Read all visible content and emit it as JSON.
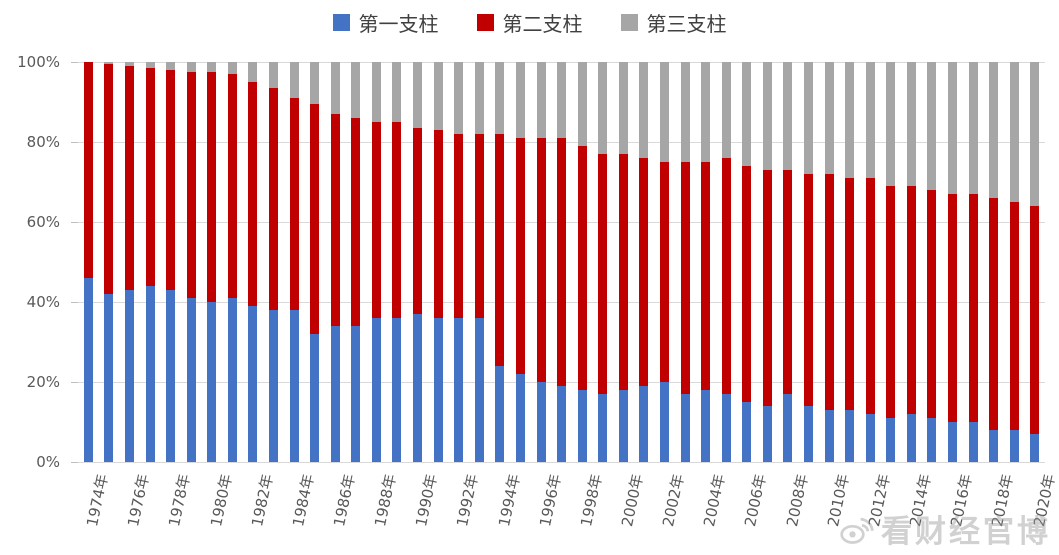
{
  "legend": {
    "items": [
      {
        "label": "第一支柱",
        "color": "#4472C4"
      },
      {
        "label": "第二支柱",
        "color": "#C00000"
      },
      {
        "label": "第三支柱",
        "color": "#A6A6A6"
      }
    ]
  },
  "watermark": {
    "text": "看财经官博",
    "icon": "weibo-icon"
  },
  "chart_data": {
    "type": "bar",
    "stacked": true,
    "percent": true,
    "title": "",
    "xlabel": "",
    "ylabel": "",
    "ylim": [
      0,
      100
    ],
    "yticks": [
      "0%",
      "20%",
      "40%",
      "60%",
      "80%",
      "100%"
    ],
    "gridlines": "horizontal",
    "legend_position": "top",
    "xtick_step": 2,
    "xtick_suffix": "年",
    "years": [
      1974,
      1975,
      1976,
      1977,
      1978,
      1979,
      1980,
      1981,
      1982,
      1983,
      1984,
      1985,
      1986,
      1987,
      1988,
      1989,
      1990,
      1991,
      1992,
      1993,
      1994,
      1995,
      1996,
      1997,
      1998,
      1999,
      2000,
      2001,
      2002,
      2003,
      2004,
      2005,
      2006,
      2007,
      2008,
      2009,
      2010,
      2011,
      2012,
      2013,
      2014,
      2015,
      2016,
      2017,
      2018,
      2019,
      2020
    ],
    "series": [
      {
        "name": "第一支柱",
        "color": "#4472C4",
        "values": [
          46,
          42,
          43,
          44,
          43,
          41,
          40,
          41,
          39,
          38,
          38,
          32,
          34,
          34,
          36,
          36,
          37,
          36,
          36,
          36,
          24,
          22,
          20,
          19,
          18,
          17,
          18,
          19,
          20,
          17,
          18,
          17,
          15,
          14,
          17,
          14,
          13,
          13,
          12,
          11,
          12,
          11,
          10,
          10,
          8,
          8,
          7
        ]
      },
      {
        "name": "第二支柱",
        "color": "#C00000",
        "values": [
          54,
          57.5,
          56,
          54.5,
          55,
          56.5,
          57.5,
          56,
          56,
          55.5,
          53,
          57.5,
          53,
          52,
          49,
          49,
          46.5,
          47,
          46,
          46,
          58,
          59,
          61,
          62,
          61,
          60,
          59,
          57,
          55,
          58,
          57,
          59,
          59,
          59,
          56,
          58,
          59,
          58,
          59,
          58,
          57,
          57,
          57,
          57,
          58,
          57,
          57
        ]
      },
      {
        "name": "第三支柱",
        "color": "#A6A6A6",
        "values": [
          0,
          0.5,
          1,
          1.5,
          2,
          2.5,
          2.5,
          3,
          5,
          6.5,
          9,
          10.5,
          13,
          14,
          15,
          15,
          16.5,
          17,
          18,
          18,
          18,
          19,
          19,
          19,
          21,
          23,
          23,
          24,
          25,
          25,
          25,
          24,
          26,
          27,
          27,
          28,
          28,
          29,
          29,
          31,
          31,
          32,
          33,
          33,
          34,
          35,
          36
        ]
      }
    ]
  }
}
